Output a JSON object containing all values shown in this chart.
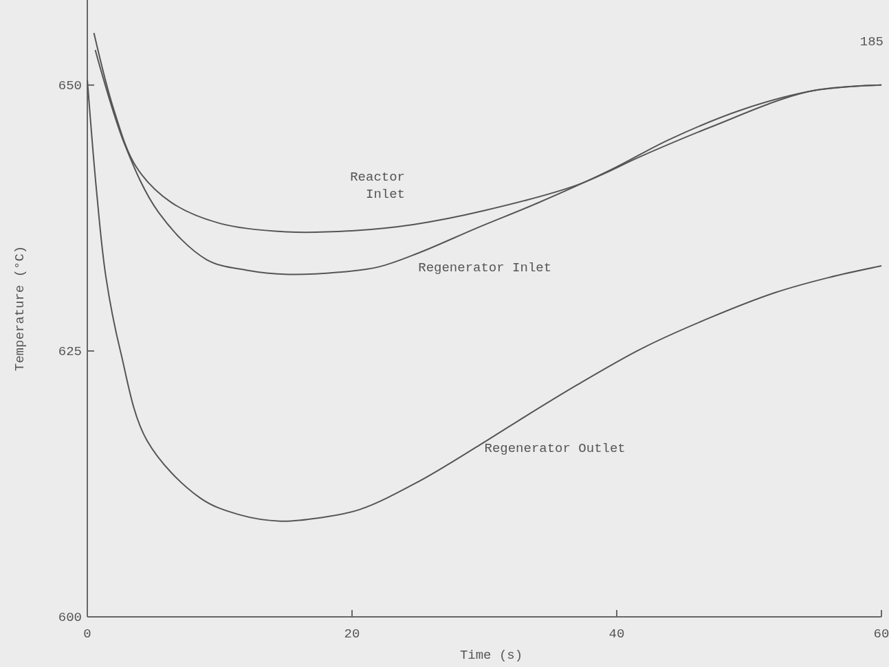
{
  "chart_data": {
    "type": "line",
    "xlabel": "Time (s)",
    "ylabel": "Temperature (°C)",
    "xlim": [
      0,
      60
    ],
    "ylim": [
      600,
      658
    ],
    "xticks": [
      0,
      20,
      40,
      60
    ],
    "yticks": [
      600,
      625,
      650
    ],
    "grid": false,
    "marker": "none",
    "line_style": "solid",
    "annotations": [
      "185"
    ],
    "series": [
      {
        "name": "Reactor Inlet",
        "color": "#555555",
        "x": [
          0.5,
          2,
          3.7,
          6.3,
          10,
          15,
          20,
          24.7,
          30,
          37,
          42,
          47,
          54.5,
          60
        ],
        "values": [
          654.9,
          647.7,
          642.3,
          639,
          637,
          636.2,
          636.3,
          636.9,
          638.2,
          640.6,
          643.4,
          646,
          649.4,
          650
        ]
      },
      {
        "name": "Regenerator Inlet",
        "color": "#555555",
        "x": [
          0.6,
          2.8,
          5.4,
          9,
          12,
          15.2,
          19,
          22,
          25,
          29.5,
          34,
          39.5,
          44,
          49.5,
          55,
          60
        ],
        "values": [
          653.3,
          644.5,
          638,
          633.6,
          632.6,
          632.2,
          632.4,
          632.9,
          634.2,
          636.6,
          638.9,
          642,
          644.9,
          647.7,
          649.5,
          650
        ]
      },
      {
        "name": "Regenerator Outlet",
        "color": "#555555",
        "x": [
          0,
          0.7,
          1.4,
          2.5,
          4.5,
          8.5,
          11.5,
          14.6,
          17.5,
          20.6,
          25,
          29.7,
          32,
          37,
          42,
          47,
          52,
          56,
          60
        ],
        "values": [
          650.5,
          640,
          632,
          625,
          616.6,
          611.2,
          609.6,
          609,
          609.3,
          610.1,
          612.7,
          616.2,
          618,
          621.8,
          625.3,
          628.1,
          630.5,
          631.9,
          633
        ]
      }
    ]
  }
}
